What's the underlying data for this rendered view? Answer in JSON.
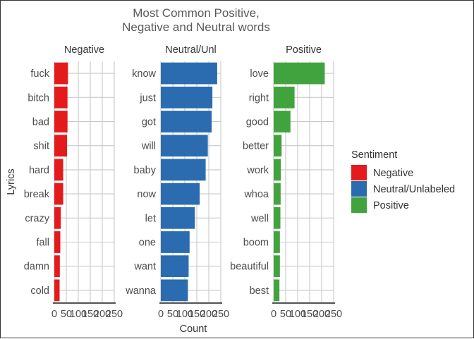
{
  "chart_data": {
    "type": "bar",
    "orientation": "horizontal",
    "title": "Most Common Positive,\nNegative and Neutral words",
    "xlabel": "Count",
    "ylabel": "Lyrics",
    "xlim": [
      0,
      250
    ],
    "x_ticks": [
      "0",
      "50",
      "100",
      "150",
      "200",
      "250"
    ],
    "grid": true,
    "legend": {
      "title": "Sentiment",
      "position": "right",
      "entries": [
        {
          "label": "Negative",
          "color": "#e41a1c"
        },
        {
          "label": "Neutral/Unlabeled",
          "color": "#2b6cb0"
        },
        {
          "label": "Positive",
          "color": "#41a33e"
        }
      ]
    },
    "panels": [
      {
        "strip": "Negative",
        "color": "#e41a1c",
        "categories": [
          "fuck",
          "bitch",
          "bad",
          "shit",
          "hard",
          "break",
          "crazy",
          "fall",
          "damn",
          "cold"
        ],
        "values": [
          57,
          55,
          55,
          53,
          37,
          37,
          27,
          25,
          23,
          22
        ]
      },
      {
        "strip": "Neutral/Unl",
        "color": "#2b6cb0",
        "categories": [
          "know",
          "just",
          "got",
          "will",
          "baby",
          "now",
          "let",
          "one",
          "want",
          "wanna"
        ],
        "values": [
          235,
          215,
          212,
          196,
          187,
          162,
          142,
          120,
          116,
          113
        ]
      },
      {
        "strip": "Positive",
        "color": "#41a33e",
        "categories": [
          "love",
          "right",
          "good",
          "better",
          "work",
          "whoa",
          "well",
          "boom",
          "beautiful",
          "best"
        ],
        "values": [
          213,
          87,
          70,
          33,
          30,
          29,
          28,
          26,
          26,
          24
        ]
      }
    ]
  }
}
